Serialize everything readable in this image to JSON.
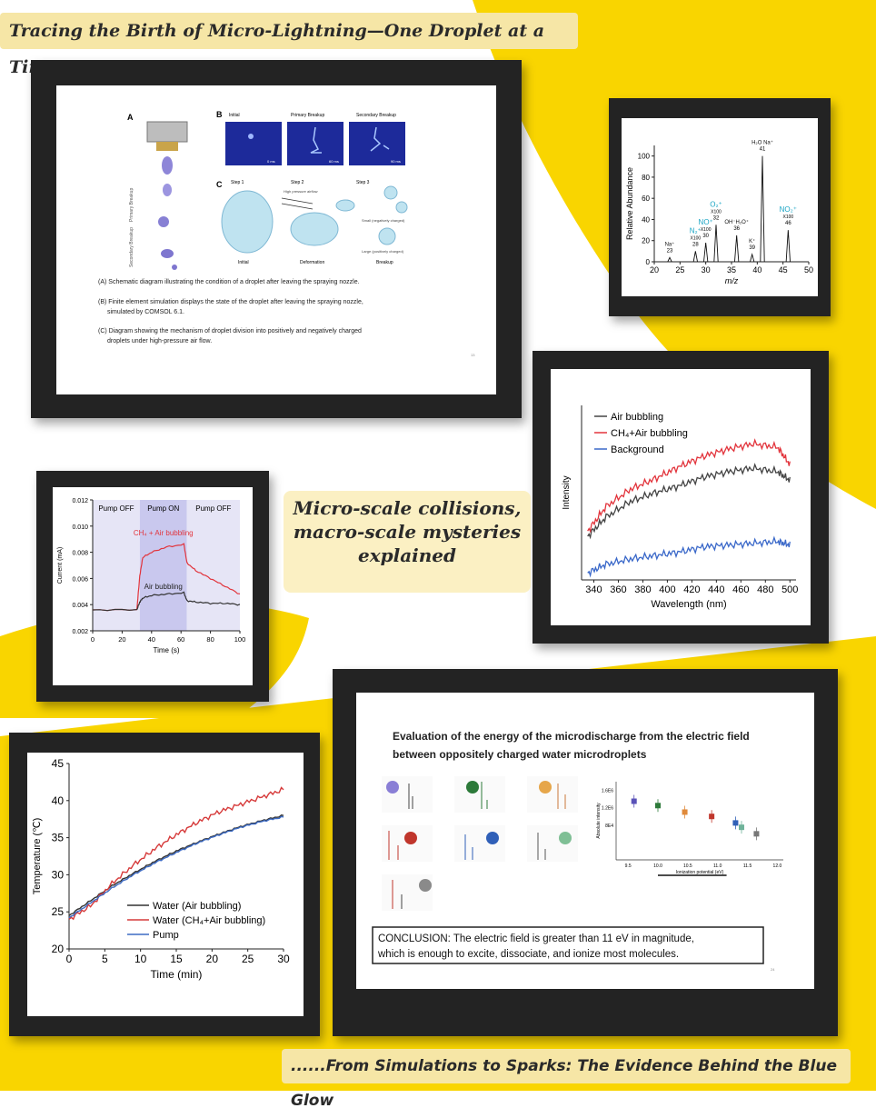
{
  "header": {
    "title": "Tracing the Birth of Micro-Lightning—One Droplet at a Time..."
  },
  "caption": {
    "line1": "Micro-scale collisions,",
    "line2": "macro-scale mysteries",
    "line3": "explained"
  },
  "footer": {
    "text": "......From Simulations to Sparks: The Evidence Behind the Blue Glow"
  },
  "colors": {
    "yellow": "#f9d500",
    "black": "#1f1f1f",
    "red": "#e2343c",
    "blue": "#3a68c9",
    "cyan": "#19a4c4"
  },
  "panel_simulation": {
    "labelA": "A",
    "labelB": "B",
    "labelC": "C",
    "sim_titles": [
      "Initial",
      "Primary Breakup",
      "Secondary Breakup"
    ],
    "sim_times": [
      "0 ms",
      "60 ms",
      "90 ms"
    ],
    "step_titles": [
      "Step 1",
      "Step 2",
      "Step 3"
    ],
    "step_captions": [
      "Initial",
      "Deformation",
      "Breakup"
    ],
    "air_label": "High pressure airflow",
    "small_label": "Small (negatively charged)",
    "large_label": "Large (positively charged)",
    "axis_primary": "Primary Breakup",
    "axis_secondary": "Secondary Breakup",
    "caption_a": "(A) Schematic diagram illustrating the condition of a droplet after leaving the spraying nozzle.",
    "caption_b1": "(B) Finite element simulation displays the state of the droplet after leaving the spraying nozzle,",
    "caption_b2": "simulated by COMSOL 6.1.",
    "caption_c1": "(C) Diagram showing the mechanism of droplet division into positively and negatively charged",
    "caption_c2": "droplets under high-pressure air flow.",
    "page_num": "13"
  },
  "panel_energy": {
    "title1": "Evaluation of the energy of the microdischarge from the electric field",
    "title2": "between oppositely charged water microdroplets",
    "ylabel": "Absolute intensity",
    "xlabel": "Ionization potential (eV)",
    "yticks": [
      "1.6E6",
      "1.2E6",
      "8E4"
    ],
    "xticks": [
      "9.5",
      "10.0",
      "10.5",
      "11.0",
      "11.5",
      "12.0"
    ],
    "conclusion1": "CONCLUSION:  The electric field is greater than 11 eV in magnitude,",
    "conclusion2": "which is enough to excite, dissociate, and ionize most molecules.",
    "page_num": "24"
  },
  "chart_data": [
    {
      "type": "bar",
      "name": "mass-spectrum",
      "xlabel": "m/z",
      "ylabel": "Relative Abundance",
      "xlim": [
        20,
        50
      ],
      "ylim": [
        0,
        110
      ],
      "xticks": [
        20,
        25,
        30,
        35,
        40,
        45,
        50
      ],
      "yticks": [
        0,
        20,
        40,
        60,
        80,
        100
      ],
      "peaks": [
        {
          "mz": 23,
          "value": 4,
          "ion": "Na⁺",
          "mult": "",
          "mzlabel": "23",
          "color": "#111111"
        },
        {
          "mz": 28,
          "value": 10,
          "ion": "N₂⁺",
          "mult": "X100",
          "mzlabel": "28",
          "color": "#19a4c4"
        },
        {
          "mz": 30,
          "value": 18,
          "ion": "NO⁺",
          "mult": "X100",
          "mzlabel": "30",
          "color": "#19a4c4"
        },
        {
          "mz": 32,
          "value": 35,
          "ion": "O₂⁺",
          "mult": "X100",
          "mzlabel": "32",
          "color": "#19a4c4"
        },
        {
          "mz": 36,
          "value": 25,
          "ion": "OH⁻H₂O⁺",
          "mult": "",
          "mzlabel": "36",
          "color": "#111111"
        },
        {
          "mz": 39,
          "value": 7,
          "ion": "K⁺",
          "mult": "",
          "mzlabel": "39",
          "color": "#111111"
        },
        {
          "mz": 41,
          "value": 100,
          "ion": "H₂O Na⁺",
          "mult": "",
          "mzlabel": "41",
          "color": "#111111"
        },
        {
          "mz": 46,
          "value": 30,
          "ion": "NO₂⁺",
          "mult": "X100",
          "mzlabel": "46",
          "color": "#19a4c4"
        }
      ]
    },
    {
      "type": "line",
      "name": "emission-spectrum",
      "xlabel": "Wavelength (nm)",
      "ylabel": "Intensity",
      "xlim": [
        330,
        505
      ],
      "xticks": [
        340,
        360,
        380,
        400,
        420,
        440,
        460,
        480,
        500
      ],
      "ylim": [
        0,
        100
      ],
      "legend_position": "top-left",
      "series": [
        {
          "name": "Air bubbling",
          "color": "#444444",
          "x": [
            335,
            350,
            370,
            390,
            410,
            430,
            450,
            470,
            490,
            500
          ],
          "y": [
            25,
            36,
            45,
            50,
            54,
            59,
            62,
            64,
            62,
            57
          ]
        },
        {
          "name": "CH₄+Air bubbling",
          "color": "#e2343c",
          "x": [
            335,
            350,
            370,
            390,
            410,
            430,
            450,
            470,
            490,
            500
          ],
          "y": [
            28,
            42,
            52,
            58,
            65,
            71,
            75,
            78,
            76,
            66
          ]
        },
        {
          "name": "Background",
          "color": "#3a68c9",
          "x": [
            335,
            350,
            370,
            390,
            410,
            430,
            450,
            470,
            490,
            500
          ],
          "y": [
            4,
            9,
            12,
            14,
            16,
            19,
            20,
            21,
            22,
            20
          ]
        }
      ]
    },
    {
      "type": "line",
      "name": "current-trace",
      "xlabel": "Time (s)",
      "ylabel": "Current (mA)",
      "xlim": [
        0,
        100
      ],
      "ylim": [
        0.002,
        0.012
      ],
      "xticks": [
        0,
        20,
        40,
        60,
        80,
        100
      ],
      "yticks": [
        0.002,
        0.004,
        0.006,
        0.008,
        0.01,
        0.012
      ],
      "ytick_labels": [
        "0.002",
        "0.004",
        "0.006",
        "0.008",
        "0.010",
        "0.012"
      ],
      "regions": [
        {
          "label": "Pump OFF",
          "from": 0,
          "to": 32
        },
        {
          "label": "Pump ON",
          "from": 32,
          "to": 64
        },
        {
          "label": "Pump OFF",
          "from": 64,
          "to": 100
        }
      ],
      "series": [
        {
          "name": "CH₄ + Air bubbling",
          "color": "#e2343c",
          "x": [
            0,
            30,
            32,
            34,
            40,
            50,
            62,
            64,
            70,
            80,
            90,
            100
          ],
          "y": [
            0.0036,
            0.0036,
            0.0062,
            0.0076,
            0.008,
            0.0084,
            0.0086,
            0.0072,
            0.0066,
            0.006,
            0.0054,
            0.0048
          ]
        },
        {
          "name": "Air bubbling",
          "color": "#333333",
          "x": [
            0,
            30,
            32,
            34,
            40,
            50,
            62,
            64,
            70,
            80,
            90,
            100
          ],
          "y": [
            0.0036,
            0.0036,
            0.0042,
            0.0045,
            0.0047,
            0.0048,
            0.0049,
            0.0043,
            0.0042,
            0.0041,
            0.0041,
            0.004
          ]
        }
      ]
    },
    {
      "type": "line",
      "name": "temperature-trace",
      "xlabel": "Time (min)",
      "ylabel": "Temperature (℃)",
      "xlim": [
        0,
        30
      ],
      "ylim": [
        20,
        45
      ],
      "xticks": [
        0,
        5,
        10,
        15,
        20,
        25,
        30
      ],
      "yticks": [
        20,
        25,
        30,
        35,
        40,
        45
      ],
      "legend_position": "bottom-left",
      "series": [
        {
          "name": "Water (Air bubbling)",
          "color": "#333333",
          "x": [
            0,
            3,
            6,
            9,
            12,
            15,
            18,
            21,
            24,
            27,
            30
          ],
          "y": [
            24.5,
            26.5,
            28.5,
            30.2,
            31.8,
            33.2,
            34.4,
            35.5,
            36.5,
            37.3,
            38
          ]
        },
        {
          "name": "Water (CH₄+Air bubbling)",
          "color": "#d63a3a",
          "x": [
            0,
            3,
            6,
            9,
            12,
            15,
            18,
            21,
            24,
            27,
            30
          ],
          "y": [
            24,
            25.8,
            28.8,
            31.3,
            33.5,
            35.4,
            37.1,
            38.5,
            39.5,
            40.5,
            41.5
          ]
        },
        {
          "name": "Pump",
          "color": "#3d6bc4",
          "x": [
            0,
            3,
            6,
            9,
            12,
            15,
            18,
            21,
            24,
            27,
            30
          ],
          "y": [
            24.2,
            26.2,
            28.2,
            30.0,
            31.6,
            33.0,
            34.3,
            35.4,
            36.4,
            37.2,
            37.8
          ]
        }
      ]
    },
    {
      "type": "scatter",
      "name": "ionization-points",
      "xlabel": "Ionization potential (eV)",
      "ylabel": "Absolute intensity",
      "xlim": [
        9.3,
        12.1
      ],
      "ylim": [
        0,
        1.8
      ],
      "points": [
        {
          "x": 9.6,
          "y": 1.35,
          "color": "#5a52b8"
        },
        {
          "x": 10.0,
          "y": 1.25,
          "color": "#2d7a3a"
        },
        {
          "x": 10.45,
          "y": 1.1,
          "color": "#e08a3a"
        },
        {
          "x": 10.9,
          "y": 1.0,
          "color": "#c0362c"
        },
        {
          "x": 11.3,
          "y": 0.85,
          "color": "#3060b8"
        },
        {
          "x": 11.4,
          "y": 0.75,
          "color": "#6fb39a"
        },
        {
          "x": 11.65,
          "y": 0.6,
          "color": "#777777"
        }
      ]
    }
  ]
}
